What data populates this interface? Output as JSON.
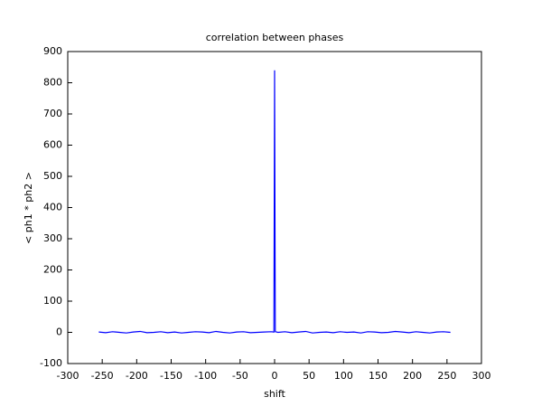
{
  "chart_data": {
    "type": "line",
    "title": "correlation between phases",
    "x_label": "shift",
    "y_label": "< ph1 * ph2 >",
    "x": [
      -255,
      -245,
      -235,
      -225,
      -215,
      -205,
      -195,
      -185,
      -175,
      -165,
      -155,
      -145,
      -135,
      -125,
      -115,
      -105,
      -95,
      -85,
      -75,
      -65,
      -55,
      -45,
      -35,
      -25,
      -15,
      -5,
      -1,
      0,
      1,
      5,
      15,
      25,
      35,
      45,
      55,
      65,
      75,
      85,
      95,
      105,
      115,
      125,
      135,
      145,
      155,
      165,
      175,
      185,
      195,
      205,
      215,
      225,
      235,
      245,
      255
    ],
    "values": [
      1,
      -1,
      2,
      0,
      -2,
      1,
      3,
      -1,
      0,
      2,
      -1,
      1,
      -2,
      0,
      2,
      1,
      -1,
      3,
      0,
      -2,
      1,
      2,
      -1,
      0,
      1,
      2,
      1,
      840,
      2,
      0,
      2,
      -1,
      1,
      3,
      -2,
      0,
      1,
      -1,
      2,
      0,
      1,
      -2,
      2,
      1,
      -1,
      0,
      3,
      1,
      -1,
      2,
      0,
      -2,
      1,
      2,
      0
    ],
    "color": "#0000ff",
    "xlim": [
      -300,
      300
    ],
    "xticks": [
      -300,
      -250,
      -200,
      -150,
      -100,
      -50,
      0,
      50,
      100,
      150,
      200,
      250,
      300
    ],
    "ylim": [
      -100,
      900
    ],
    "yticks": [
      -100,
      0,
      100,
      200,
      300,
      400,
      500,
      600,
      700,
      800,
      900
    ]
  }
}
